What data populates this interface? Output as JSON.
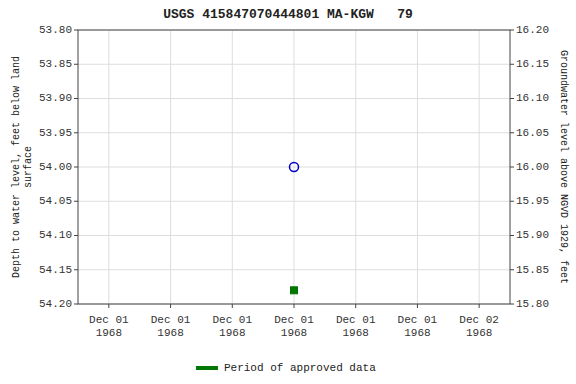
{
  "chart_data": {
    "type": "scatter",
    "title": "USGS 415847070444801 MA-KGW   79",
    "y_label": "Depth to water level, feet below land\nsurface",
    "y2_label": "Groundwater level above NGVD 1929, feet",
    "categories": [
      "Dec 01\n1968",
      "Dec 01\n1968",
      "Dec 01\n1968",
      "Dec 01\n1968",
      "Dec 01\n1968",
      "Dec 01\n1968",
      "Dec 02\n1968"
    ],
    "series": [
      {
        "color": "#0000cc",
        "marker": "open-circle",
        "values": [
          null,
          null,
          null,
          54.0,
          null,
          null,
          null
        ]
      },
      {
        "name": "Period of approved data",
        "color": "#007700",
        "marker": "square",
        "values": [
          null,
          null,
          null,
          54.18,
          null,
          null,
          null
        ]
      }
    ],
    "ylim": [
      54.2,
      53.8
    ],
    "yticks": [
      {
        "value": 53.8,
        "label": "53.80"
      },
      {
        "value": 53.85,
        "label": "53.85"
      },
      {
        "value": 53.9,
        "label": "53.90"
      },
      {
        "value": 53.95,
        "label": "53.95"
      },
      {
        "value": 54.0,
        "label": "54.00"
      },
      {
        "value": 54.05,
        "label": "54.05"
      },
      {
        "value": 54.1,
        "label": "54.10"
      },
      {
        "value": 54.15,
        "label": "54.15"
      },
      {
        "value": 54.2,
        "label": "54.20"
      }
    ],
    "y2lim": [
      15.8,
      16.2
    ],
    "y2ticks": [
      {
        "value": 16.2,
        "label": "16.20"
      },
      {
        "value": 16.15,
        "label": "16.15"
      },
      {
        "value": 16.1,
        "label": "16.10"
      },
      {
        "value": 16.05,
        "label": "16.05"
      },
      {
        "value": 16.0,
        "label": "16.00"
      },
      {
        "value": 15.95,
        "label": "15.95"
      },
      {
        "value": 15.9,
        "label": "15.90"
      },
      {
        "value": 15.85,
        "label": "15.85"
      },
      {
        "value": 15.8,
        "label": "15.80"
      }
    ],
    "grid": true,
    "legend": "bottom"
  }
}
